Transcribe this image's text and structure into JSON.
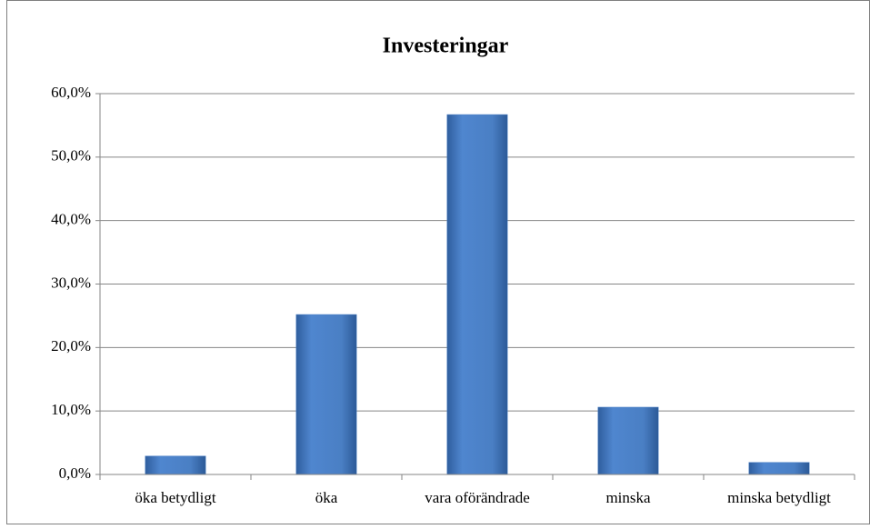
{
  "chart_data": {
    "type": "bar",
    "title": "Investeringar",
    "categories": [
      "öka betydligt",
      "öka",
      "vara oförändrade",
      "minska",
      "minska betydligt"
    ],
    "values": [
      2.9,
      25.2,
      56.7,
      10.6,
      1.9
    ],
    "color": "#4a7fc4",
    "ylim": [
      0,
      60
    ],
    "yticks": [
      {
        "value": 0,
        "label": "0,0%"
      },
      {
        "value": 10,
        "label": "10,0%"
      },
      {
        "value": 20,
        "label": "20,0%"
      },
      {
        "value": 30,
        "label": "30,0%"
      },
      {
        "value": 40,
        "label": "40,0%"
      },
      {
        "value": 50,
        "label": "50,0%"
      },
      {
        "value": 60,
        "label": "60,0%"
      }
    ],
    "grid": true
  }
}
